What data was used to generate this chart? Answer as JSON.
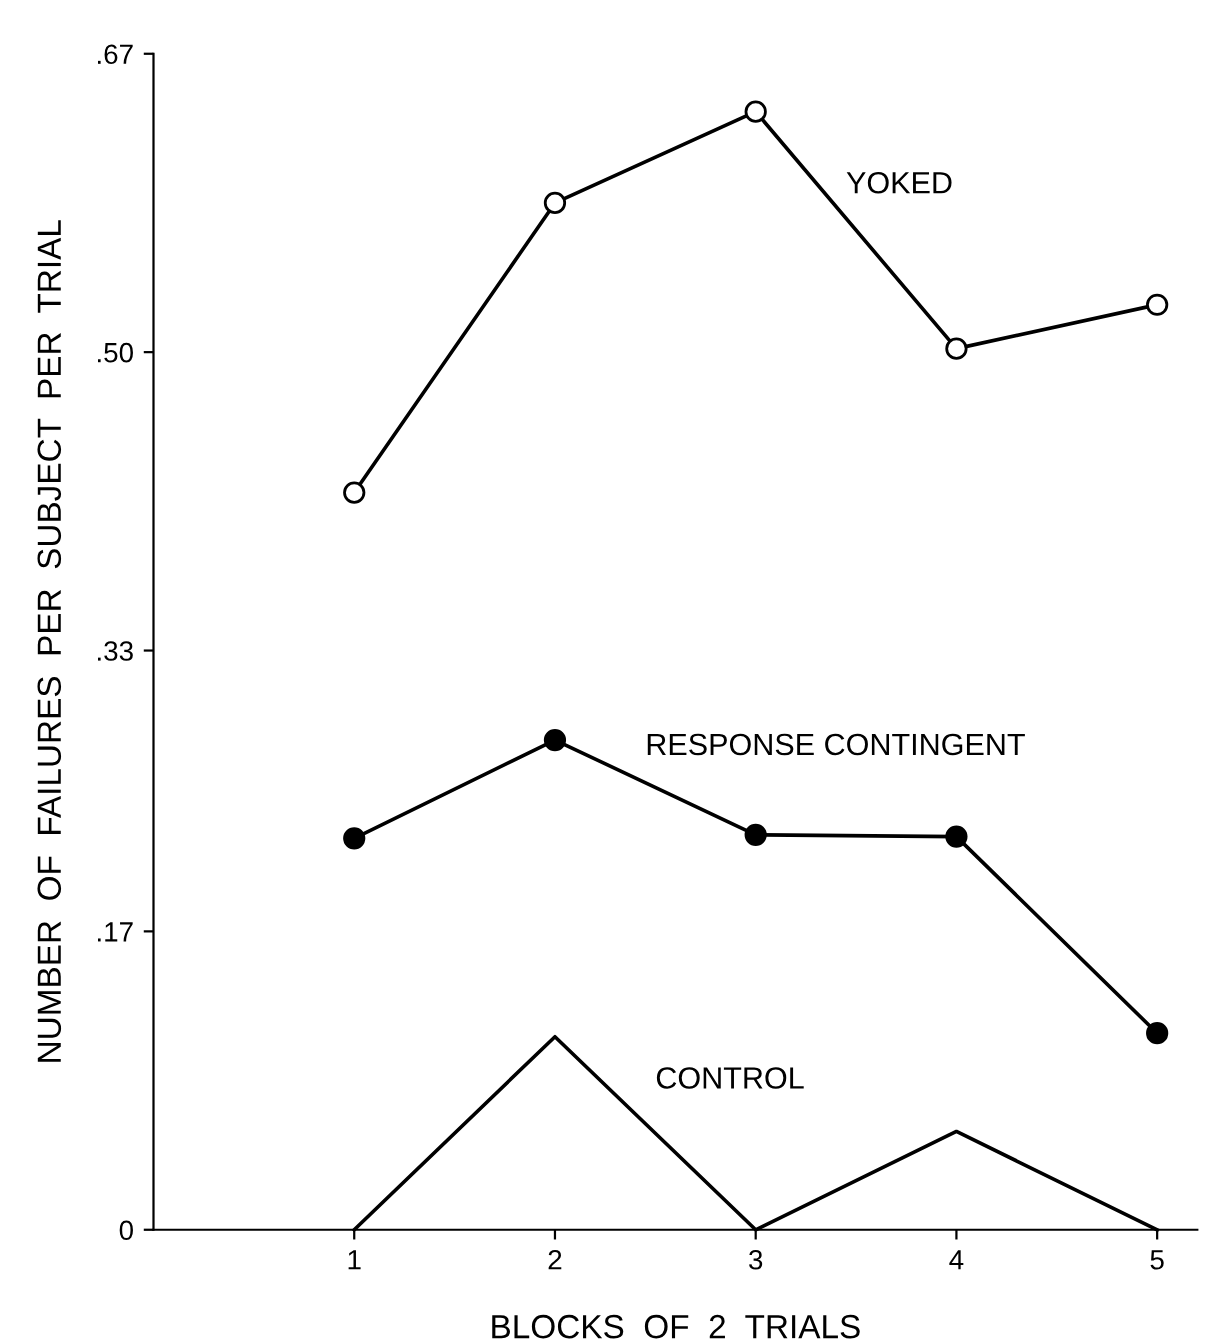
{
  "chart_data": {
    "type": "line",
    "xlabel": "BLOCKS  OF  2  TRIALS",
    "ylabel": "NUMBER  OF  FAILURES  PER  SUBJECT  PER  TRIAL",
    "x": [
      1,
      2,
      3,
      4,
      5
    ],
    "series": [
      {
        "name": "YOKED",
        "color": "#000000",
        "marker": "circle",
        "values": [
          0.42,
          0.585,
          0.637,
          0.502,
          0.527
        ]
      },
      {
        "name": "RESPONSE CONTINGENT",
        "color": "#000000",
        "marker": "circle",
        "values": [
          0.223,
          0.279,
          0.225,
          0.224,
          0.112
        ]
      },
      {
        "name": "CONTROL",
        "color": "#000000",
        "marker": "none",
        "values": [
          0,
          0.11,
          0,
          0.056,
          0
        ]
      }
    ],
    "xlim": [
      0,
      5.2
    ],
    "ylim": [
      0,
      0.67
    ],
    "xticks": [
      1,
      2,
      3,
      4,
      5
    ],
    "yticks": [
      {
        "value": 0,
        "label": "0"
      },
      {
        "value": 0.17,
        "label": ".17"
      },
      {
        "value": 0.33,
        "label": ".33"
      },
      {
        "value": 0.5,
        "label": ".50"
      },
      {
        "value": 0.67,
        "label": ".67"
      }
    ],
    "grid": false,
    "legend": false,
    "line_style": "solid"
  }
}
